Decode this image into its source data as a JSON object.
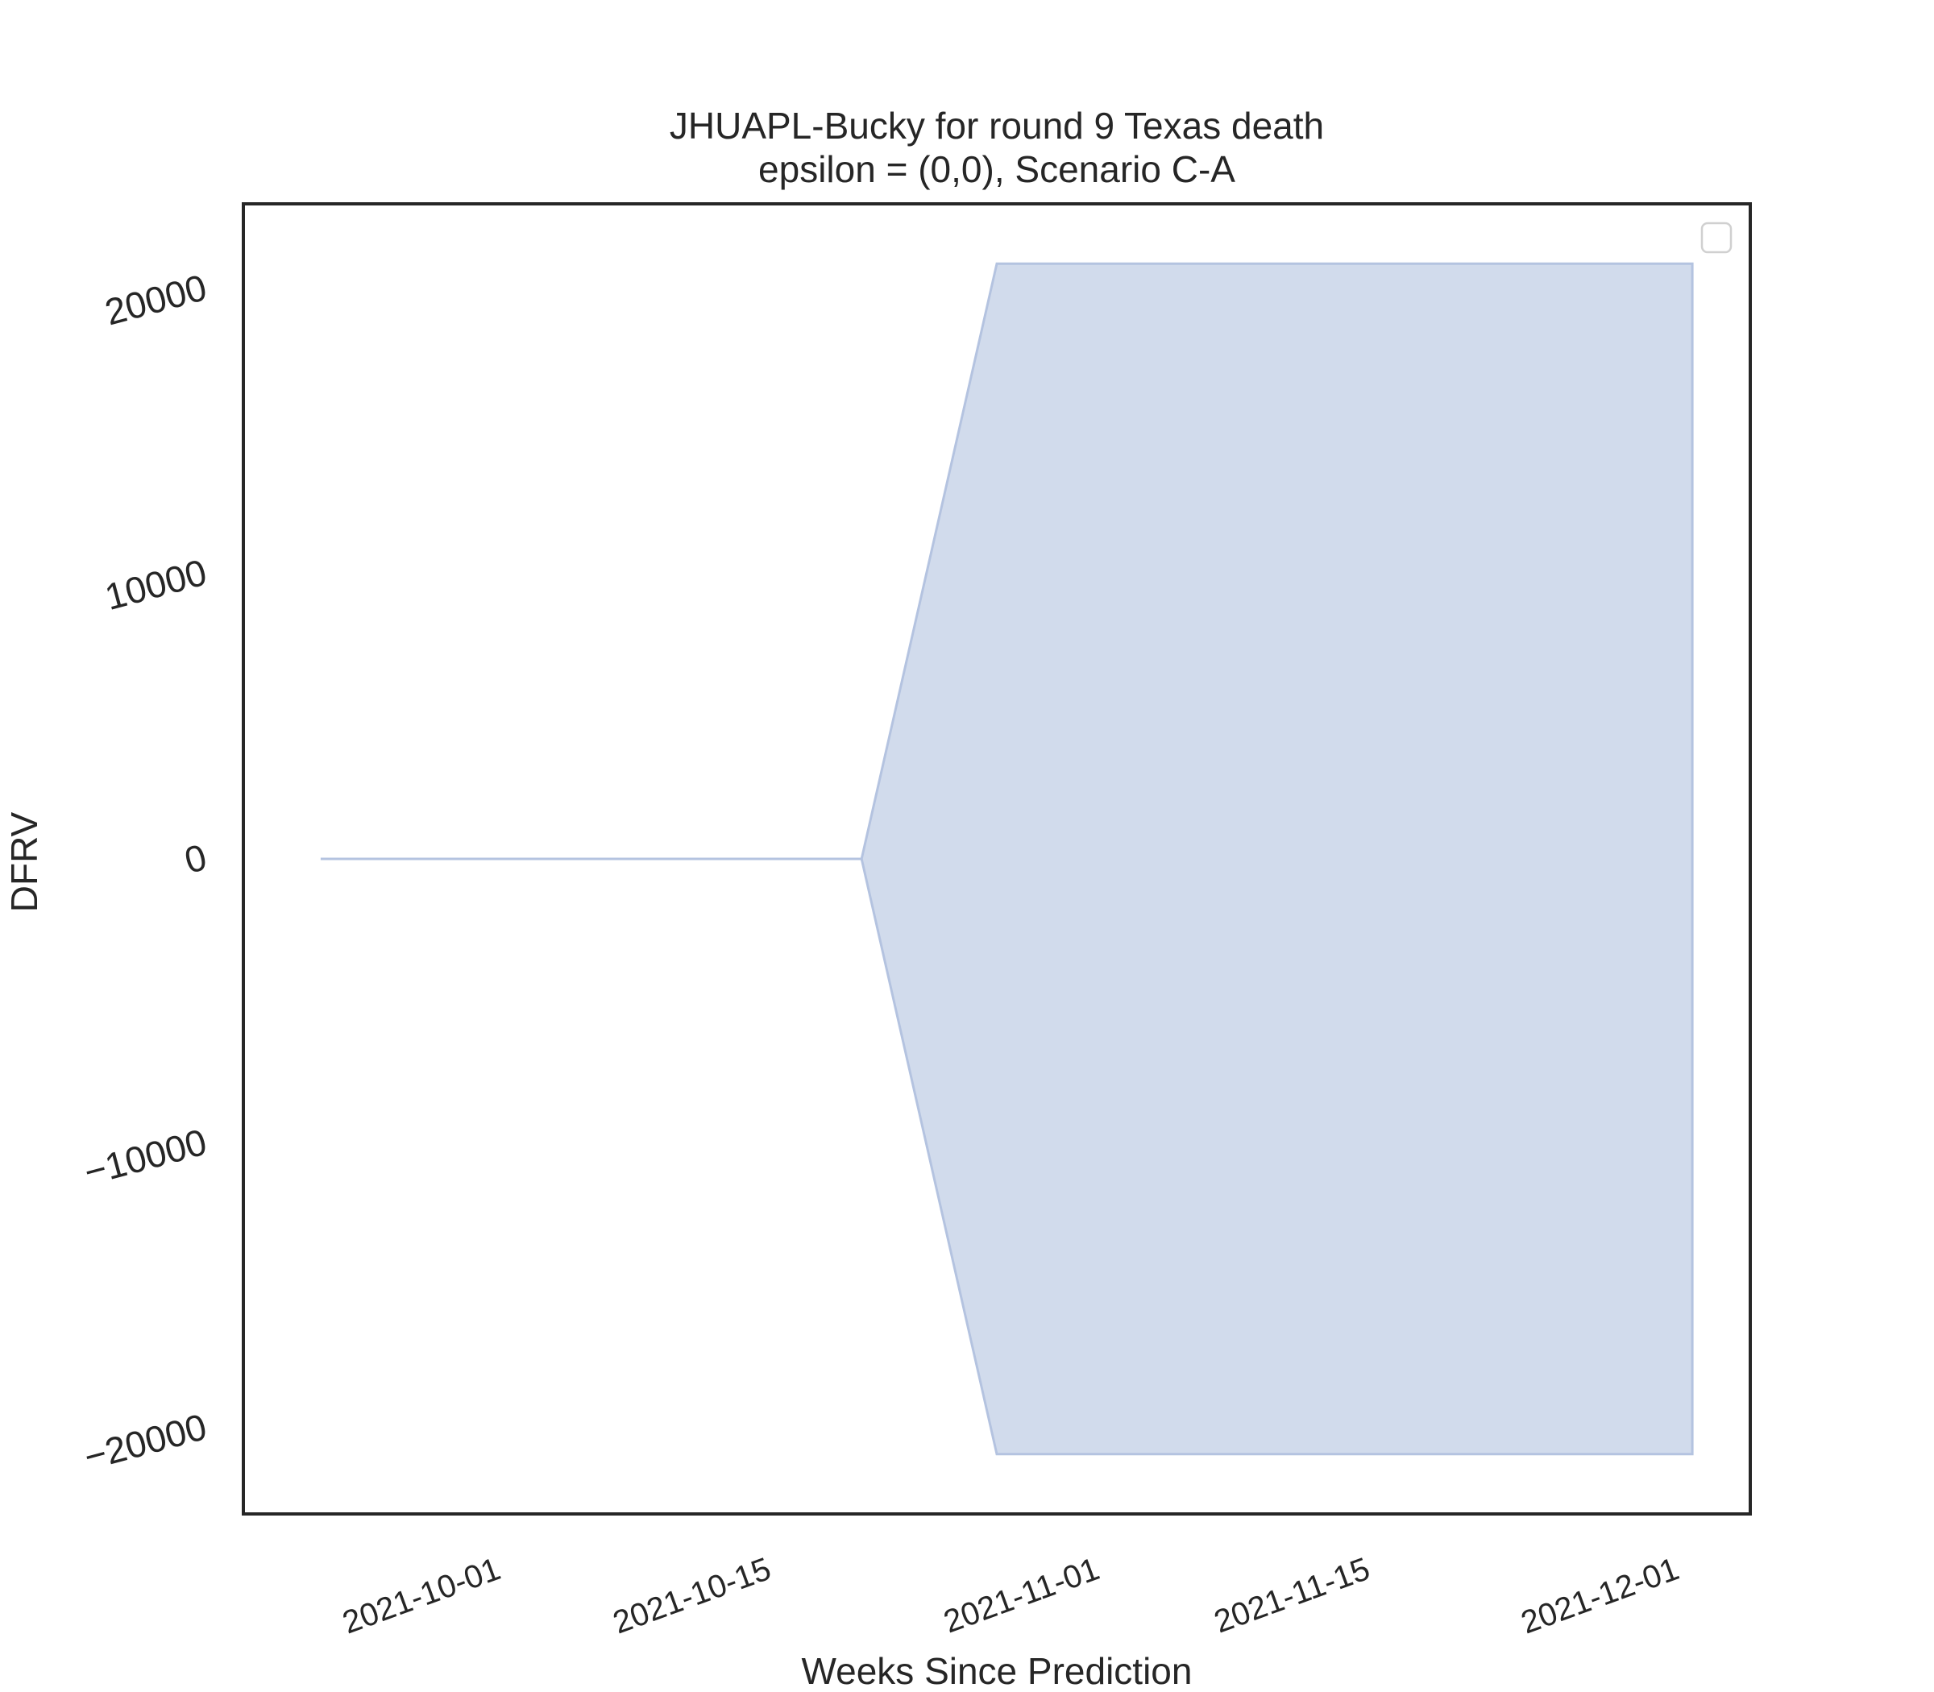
{
  "chart_data": {
    "type": "area",
    "title": "JHUAPL-Bucky for round 9 Texas death",
    "subtitle": "epsilon = (0,0), Scenario C-A",
    "xlabel": "Weeks Since Prediction",
    "ylabel": "DFRV",
    "x_ticks": [
      "2021-10-01",
      "2021-10-15",
      "2021-11-01",
      "2021-11-15",
      "2021-12-01"
    ],
    "y_ticks": [
      -20000,
      -10000,
      0,
      10000,
      20000
    ],
    "xlim": [
      "2021-09-18",
      "2021-12-05"
    ],
    "ylim": [
      -23000,
      23000
    ],
    "band": {
      "x": [
        "2021-09-22",
        "2021-10-20",
        "2021-10-27",
        "2021-12-02"
      ],
      "lower": [
        0,
        0,
        -20900,
        -20900
      ],
      "upper": [
        0,
        0,
        20900,
        20900
      ]
    },
    "legend": {
      "position": "top-right",
      "entries": []
    },
    "grid": false,
    "colors": {
      "band_fill": "#d1dbec",
      "band_edge": "#b4c3e0",
      "axes": "#262626"
    }
  }
}
